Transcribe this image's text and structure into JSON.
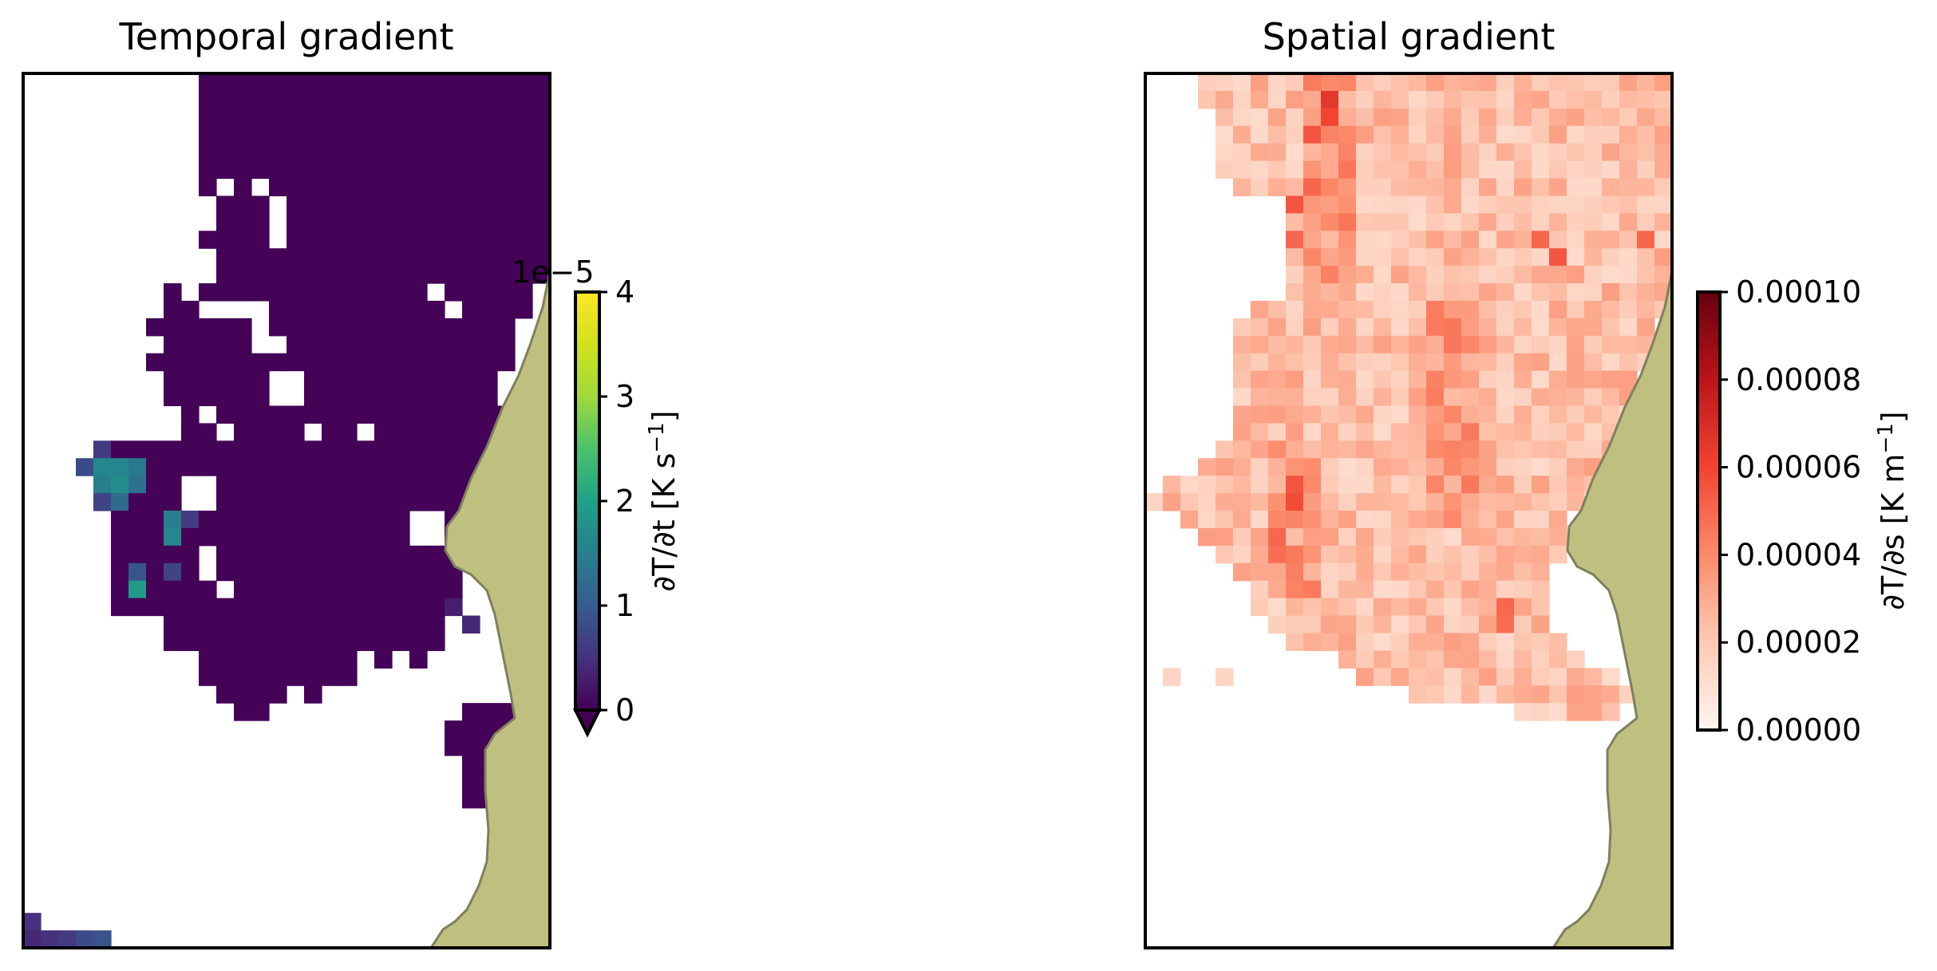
{
  "chart_data": [
    {
      "type": "heatmap",
      "title": "Temporal gradient",
      "colormap": "viridis",
      "grid_shape": [
        50,
        30
      ],
      "colorbar": {
        "label_text": "∂T/∂t [K s",
        "label_sup": "−1",
        "label_close": "]",
        "offset_text": "1e−5",
        "scale": 1e-05,
        "ticks": [
          0,
          1,
          2,
          3,
          4
        ],
        "tick_labels": [
          "0",
          "1",
          "2",
          "3",
          "4"
        ],
        "range": [
          0,
          4
        ],
        "extend": "min"
      },
      "land_color": "#bfbf7f",
      "land_edge_color": "#7f7f5f",
      "values_note_units": "1e-5 K s^-1",
      "data_rows": [
        "..........TTTTTTTTTTTTTTTTTTTT",
        "..........TTTTTTTTTTTTTTTTTTTT",
        "..........TTTTTTTTTTTTTTTTTTTT",
        "..........TTTTTTTTTTTTTTTTTTTT",
        "..........TTTTTTTTTTTTTTTTTTTT",
        "..........TTTTTTTTTTTTTTTTTTTT",
        "..........T.T.TTTTTTTTTTTTTTTT",
        "...........TTT.TTTTTTTTTTTTTTT",
        "...........TTT.TTTTTTTTTTTTTTT",
        "..........TTTT.TTTTTTTTTTTTTTT",
        "...........TTTTTTTTTTTTTTTTTTT",
        "...........TTTTTTTTTTTTTTTTTTT",
        "........T.TTTTTTTTTTTTT.TTTTT.",
        "........TT....TTTTTTTTTT.TTTT.",
        ".......TTTTTT.TTTTTTTTTTTTTT..",
        "........TTTTT..TTTTTTTTTTTTT..",
        ".......TTTTTTTTTTTTTTTTTTTTT..",
        "........TTTTTT..TTTTTTTTTTT...",
        "........TTTTTT..TTTTTTTTTTT...",
        ".........T.TTTTTTTTTTTTTTTTT..",
        ".........TT.TTTT.TT.TTTTTTTT..",
        ".....TTTTTTTTTTTTTTTTTTTTTTT..",
        ".....TTTTTTTTTTTTTTTTTTTTTTT..",
        ".....TTTT..TTTTTTTTTTTTTTTT...",
        ".....TTTT..TTTTTTTTTTTTTTTT...",
        ".....TTTTTTTTTTTTTTTTT..TTT...",
        ".....TTTTTTTTTTTTTTTTT..TT....",
        ".....TTTTT.TTTTTTTTTTTTTT.....",
        ".....TTTTT.TTTTTTTTTTTTTT.....",
        ".....TTTTTT.TTTTTTTTTTTTT.....",
        ".....TTTTTTTTTTTTTTTTTTTT.....",
        "........TTTTTTTTTTTTTTTT......",
        "........TTTTTTTTTTTTTTTT.....T",
        "..........TTTTTTTTT.T.T.....TT",
        "..........TTTTTTTTT.........TT",
        "...........TTTT.T...........TT",
        "............TT...........TTTTT",
        "........................TTTTTT",
        "........................TTTTTT",
        ".........................TTTT.",
        ".........................TTTT.",
        ".........................TT...",
        "..............................",
        "..............................",
        "..............................",
        "..............................",
        "..............................",
        "..............................",
        "..............................",
        ".............................."
      ],
      "highlights": [
        {
          "row": 22,
          "col": 4,
          "value": 1.6
        },
        {
          "row": 22,
          "col": 5,
          "value": 1.6
        },
        {
          "row": 22,
          "col": 6,
          "value": 1.4
        },
        {
          "row": 23,
          "col": 4,
          "value": 1.5
        },
        {
          "row": 23,
          "col": 5,
          "value": 1.7
        },
        {
          "row": 23,
          "col": 6,
          "value": 1.3
        },
        {
          "row": 24,
          "col": 5,
          "value": 1.2
        },
        {
          "row": 21,
          "col": 4,
          "value": 0.6
        },
        {
          "row": 22,
          "col": 3,
          "value": 0.8
        },
        {
          "row": 24,
          "col": 4,
          "value": 0.7
        },
        {
          "row": 25,
          "col": 8,
          "value": 1.5
        },
        {
          "row": 26,
          "col": 8,
          "value": 1.6
        },
        {
          "row": 25,
          "col": 9,
          "value": 0.6
        },
        {
          "row": 28,
          "col": 6,
          "value": 0.9
        },
        {
          "row": 29,
          "col": 6,
          "value": 1.9
        },
        {
          "row": 28,
          "col": 8,
          "value": 0.7
        },
        {
          "row": 31,
          "col": 25,
          "value": 0.4
        },
        {
          "row": 30,
          "col": 24,
          "value": 0.3
        },
        {
          "row": 48,
          "col": 0,
          "value": 0.5
        },
        {
          "row": 49,
          "col": 0,
          "value": 0.4
        },
        {
          "row": 49,
          "col": 1,
          "value": 0.5
        },
        {
          "row": 49,
          "col": 2,
          "value": 0.6
        },
        {
          "row": 49,
          "col": 3,
          "value": 0.8
        },
        {
          "row": 49,
          "col": 4,
          "value": 0.9
        }
      ],
      "rows_extra": {
        "48": [
          0
        ],
        "49": [
          0,
          1,
          2,
          3,
          4
        ]
      }
    },
    {
      "type": "heatmap",
      "title": "Spatial gradient",
      "colormap": "Reds",
      "grid_shape": [
        50,
        30
      ],
      "colorbar": {
        "label_text": "∂T/∂s [K m",
        "label_sup": "−1",
        "label_close": "]",
        "ticks": [
          0,
          2e-05,
          4e-05,
          6e-05,
          8e-05,
          0.0001
        ],
        "tick_labels": [
          "0.00000",
          "0.00002",
          "0.00004",
          "0.00006",
          "0.00008",
          "0.00010"
        ],
        "range": [
          0,
          0.0001
        ],
        "extend": "neither"
      },
      "land_color": "#bfbf7f",
      "land_edge_color": "#7f7f5f",
      "values_note_units": "K m^-1",
      "row_extent": [
        [
          3,
          29
        ],
        [
          3,
          29
        ],
        [
          4,
          29
        ],
        [
          4,
          29
        ],
        [
          4,
          29
        ],
        [
          4,
          29
        ],
        [
          5,
          29
        ],
        [
          8,
          29
        ],
        [
          8,
          29
        ],
        [
          8,
          29
        ],
        [
          8,
          29
        ],
        [
          8,
          29
        ],
        [
          8,
          29
        ],
        [
          6,
          29
        ],
        [
          5,
          28
        ],
        [
          5,
          28
        ],
        [
          5,
          28
        ],
        [
          5,
          27
        ],
        [
          5,
          27
        ],
        [
          5,
          27
        ],
        [
          5,
          26
        ],
        [
          4,
          26
        ],
        [
          3,
          25
        ],
        [
          1,
          25
        ],
        [
          0,
          24
        ],
        [
          2,
          23
        ],
        [
          3,
          23
        ],
        [
          4,
          23
        ],
        [
          5,
          22
        ],
        [
          6,
          22
        ],
        [
          6,
          22
        ],
        [
          7,
          22
        ],
        [
          8,
          23
        ],
        [
          11,
          24
        ],
        [
          12,
          26
        ],
        [
          15,
          27
        ],
        [
          21,
          26
        ]
      ],
      "hot_spots": [
        {
          "row": 1,
          "col": 10,
          "value": 6.5e-05
        },
        {
          "row": 2,
          "col": 10,
          "value": 6e-05
        },
        {
          "row": 3,
          "col": 9,
          "value": 5.5e-05
        },
        {
          "row": 6,
          "col": 9,
          "value": 5e-05
        },
        {
          "row": 7,
          "col": 8,
          "value": 5.5e-05
        },
        {
          "row": 9,
          "col": 8,
          "value": 5e-05
        },
        {
          "row": 9,
          "col": 22,
          "value": 5e-05
        },
        {
          "row": 10,
          "col": 23,
          "value": 5.5e-05
        },
        {
          "row": 9,
          "col": 28,
          "value": 5e-05
        },
        {
          "row": 23,
          "col": 8,
          "value": 5.5e-05
        },
        {
          "row": 24,
          "col": 8,
          "value": 5.8e-05
        },
        {
          "row": 26,
          "col": 7,
          "value": 5e-05
        },
        {
          "row": 27,
          "col": 7,
          "value": 4.8e-05
        },
        {
          "row": 30,
          "col": 20,
          "value": 5e-05
        },
        {
          "row": 31,
          "col": 20,
          "value": 4.8e-05
        }
      ]
    }
  ]
}
